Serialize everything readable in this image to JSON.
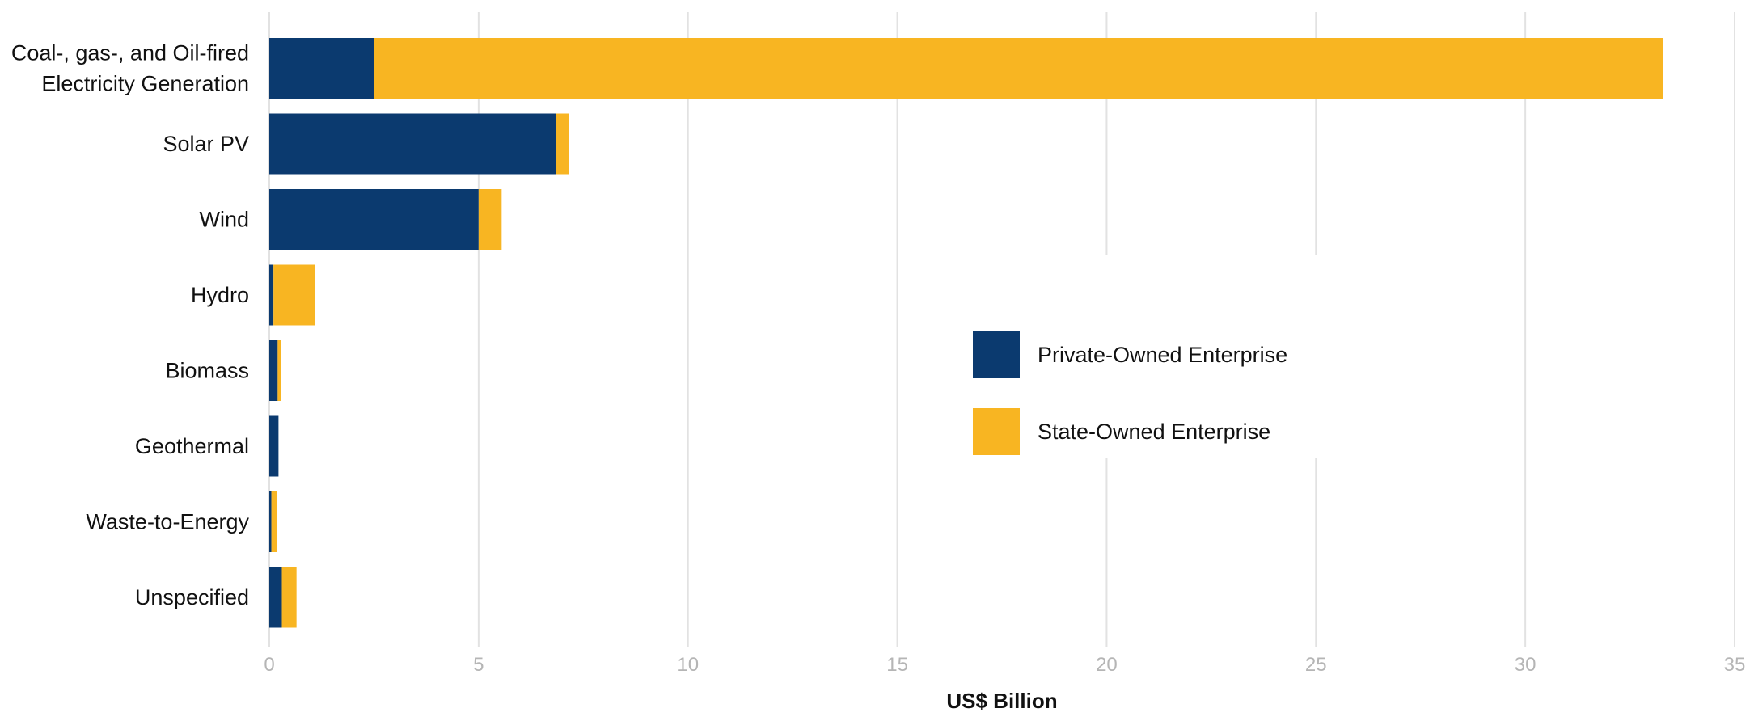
{
  "chart_data": {
    "type": "bar",
    "orientation": "horizontal",
    "stacked": true,
    "categories": [
      [
        "Coal-, gas-, and Oil-fired",
        "Electricity Generation"
      ],
      [
        "Solar PV"
      ],
      [
        "Wind"
      ],
      [
        "Hydro"
      ],
      [
        "Biomass"
      ],
      [
        "Geothermal"
      ],
      [
        "Waste-to-Energy"
      ],
      [
        "Unspecified"
      ]
    ],
    "series": [
      {
        "name": "Private-Owned Enterprise",
        "color": "#0b3a6f",
        "values": [
          2.5,
          6.85,
          5.0,
          0.1,
          0.2,
          0.22,
          0.05,
          0.3
        ]
      },
      {
        "name": "State-Owned Enterprise",
        "color": "#f8b522",
        "values": [
          30.8,
          0.3,
          0.55,
          1.0,
          0.08,
          0.0,
          0.13,
          0.35
        ]
      }
    ],
    "xlabel": "US$ Billion",
    "xlim": [
      0,
      35
    ],
    "xticks": [
      0,
      5,
      10,
      15,
      20,
      25,
      30,
      35
    ],
    "grid": true,
    "legend_position": "center-right"
  }
}
